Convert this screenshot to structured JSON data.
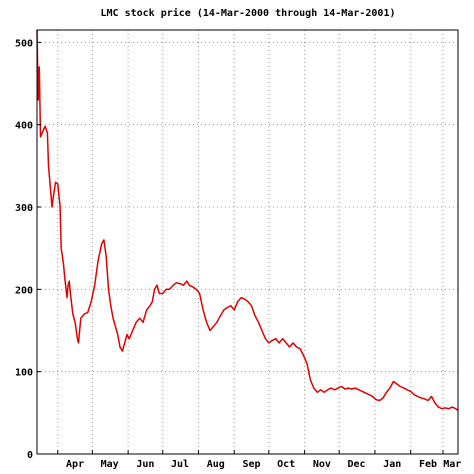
{
  "chart_data": {
    "type": "line",
    "title": "LMC stock price (14-Mar-2000 through 14-Mar-2001)",
    "xlabel": "",
    "ylabel": "",
    "x_axis": {
      "type": "date",
      "range": [
        "2000-03-14",
        "2001-03-14"
      ],
      "tick_labels": [
        {
          "label": "Apr",
          "date": "2000-04-16"
        },
        {
          "label": "May",
          "date": "2000-05-16"
        },
        {
          "label": "Jun",
          "date": "2000-06-16"
        },
        {
          "label": "Jul",
          "date": "2000-07-16"
        },
        {
          "label": "Aug",
          "date": "2000-08-16"
        },
        {
          "label": "Sep",
          "date": "2000-09-16"
        },
        {
          "label": "Oct",
          "date": "2000-10-16"
        },
        {
          "label": "Nov",
          "date": "2000-11-16"
        },
        {
          "label": "Dec",
          "date": "2000-12-16"
        },
        {
          "label": "Jan",
          "date": "2001-01-16"
        },
        {
          "label": "Feb",
          "date": "2001-02-16"
        },
        {
          "label": "Mar",
          "date": "2001-03-09"
        }
      ],
      "gridlines": [
        "2000-04-01",
        "2000-05-01",
        "2000-06-01",
        "2000-07-01",
        "2000-08-01",
        "2000-09-01",
        "2000-10-01",
        "2000-11-01",
        "2000-12-01",
        "2001-01-01",
        "2001-02-01",
        "2001-03-01"
      ]
    },
    "y_axis": {
      "range": [
        0,
        515
      ],
      "ticks": [
        0,
        100,
        200,
        300,
        400,
        500
      ]
    },
    "grid": true,
    "color": "#e00000",
    "series": [
      {
        "name": "",
        "points": [
          [
            "2000-03-14",
            515
          ],
          [
            "2000-03-15",
            430
          ],
          [
            "2000-03-16",
            470
          ],
          [
            "2000-03-17",
            385
          ],
          [
            "2000-03-20",
            395
          ],
          [
            "2000-03-21",
            398
          ],
          [
            "2000-03-23",
            390
          ],
          [
            "2000-03-24",
            350
          ],
          [
            "2000-03-27",
            300
          ],
          [
            "2000-03-28",
            310
          ],
          [
            "2000-03-30",
            330
          ],
          [
            "2000-04-01",
            328
          ],
          [
            "2000-04-03",
            300
          ],
          [
            "2000-04-04",
            250
          ],
          [
            "2000-04-05",
            240
          ],
          [
            "2000-04-06",
            230
          ],
          [
            "2000-04-07",
            215
          ],
          [
            "2000-04-09",
            190
          ],
          [
            "2000-04-10",
            205
          ],
          [
            "2000-04-11",
            210
          ],
          [
            "2000-04-12",
            195
          ],
          [
            "2000-04-14",
            170
          ],
          [
            "2000-04-16",
            160
          ],
          [
            "2000-04-18",
            140
          ],
          [
            "2000-04-19",
            135
          ],
          [
            "2000-04-21",
            165
          ],
          [
            "2000-04-24",
            170
          ],
          [
            "2000-04-27",
            172
          ],
          [
            "2000-04-30",
            185
          ],
          [
            "2000-05-03",
            205
          ],
          [
            "2000-05-06",
            235
          ],
          [
            "2000-05-09",
            255
          ],
          [
            "2000-05-11",
            260
          ],
          [
            "2000-05-13",
            240
          ],
          [
            "2000-05-15",
            200
          ],
          [
            "2000-05-17",
            180
          ],
          [
            "2000-05-19",
            165
          ],
          [
            "2000-05-21",
            155
          ],
          [
            "2000-05-23",
            145
          ],
          [
            "2000-05-25",
            130
          ],
          [
            "2000-05-27",
            125
          ],
          [
            "2000-05-29",
            135
          ],
          [
            "2000-05-31",
            145
          ],
          [
            "2000-06-02",
            140
          ],
          [
            "2000-06-05",
            150
          ],
          [
            "2000-06-08",
            160
          ],
          [
            "2000-06-11",
            165
          ],
          [
            "2000-06-14",
            160
          ],
          [
            "2000-06-17",
            175
          ],
          [
            "2000-06-20",
            180
          ],
          [
            "2000-06-22",
            185
          ],
          [
            "2000-06-24",
            200
          ],
          [
            "2000-06-26",
            205
          ],
          [
            "2000-06-28",
            195
          ],
          [
            "2000-07-01",
            195
          ],
          [
            "2000-07-04",
            200
          ],
          [
            "2000-07-07",
            200
          ],
          [
            "2000-07-10",
            205
          ],
          [
            "2000-07-13",
            208
          ],
          [
            "2000-07-16",
            207
          ],
          [
            "2000-07-19",
            205
          ],
          [
            "2000-07-22",
            210
          ],
          [
            "2000-07-24",
            205
          ],
          [
            "2000-07-27",
            203
          ],
          [
            "2000-07-30",
            200
          ],
          [
            "2000-08-02",
            195
          ],
          [
            "2000-08-05",
            175
          ],
          [
            "2000-08-08",
            160
          ],
          [
            "2000-08-11",
            150
          ],
          [
            "2000-08-14",
            155
          ],
          [
            "2000-08-17",
            160
          ],
          [
            "2000-08-20",
            168
          ],
          [
            "2000-08-23",
            175
          ],
          [
            "2000-08-26",
            178
          ],
          [
            "2000-08-29",
            180
          ],
          [
            "2000-09-01",
            175
          ],
          [
            "2000-09-04",
            185
          ],
          [
            "2000-09-07",
            190
          ],
          [
            "2000-09-10",
            188
          ],
          [
            "2000-09-13",
            185
          ],
          [
            "2000-09-16",
            180
          ],
          [
            "2000-09-19",
            168
          ],
          [
            "2000-09-22",
            160
          ],
          [
            "2000-09-25",
            150
          ],
          [
            "2000-09-28",
            140
          ],
          [
            "2000-10-01",
            135
          ],
          [
            "2000-10-04",
            138
          ],
          [
            "2000-10-07",
            140
          ],
          [
            "2000-10-10",
            135
          ],
          [
            "2000-10-13",
            140
          ],
          [
            "2000-10-16",
            135
          ],
          [
            "2000-10-19",
            130
          ],
          [
            "2000-10-22",
            135
          ],
          [
            "2000-10-25",
            130
          ],
          [
            "2000-10-28",
            128
          ],
          [
            "2000-10-31",
            120
          ],
          [
            "2000-11-03",
            110
          ],
          [
            "2000-11-06",
            90
          ],
          [
            "2000-11-09",
            80
          ],
          [
            "2000-11-12",
            75
          ],
          [
            "2000-11-15",
            78
          ],
          [
            "2000-11-18",
            75
          ],
          [
            "2000-11-21",
            78
          ],
          [
            "2000-11-24",
            80
          ],
          [
            "2000-11-27",
            78
          ],
          [
            "2000-11-30",
            80
          ],
          [
            "2000-12-03",
            82
          ],
          [
            "2000-12-06",
            79
          ],
          [
            "2000-12-09",
            80
          ],
          [
            "2000-12-12",
            79
          ],
          [
            "2000-12-15",
            80
          ],
          [
            "2000-12-18",
            78
          ],
          [
            "2000-12-21",
            76
          ],
          [
            "2000-12-24",
            74
          ],
          [
            "2000-12-27",
            72
          ],
          [
            "2000-12-30",
            70
          ],
          [
            "2001-01-02",
            66
          ],
          [
            "2001-01-05",
            65
          ],
          [
            "2001-01-08",
            68
          ],
          [
            "2001-01-11",
            75
          ],
          [
            "2001-01-14",
            80
          ],
          [
            "2001-01-17",
            88
          ],
          [
            "2001-01-20",
            85
          ],
          [
            "2001-01-23",
            82
          ],
          [
            "2001-01-26",
            80
          ],
          [
            "2001-01-29",
            78
          ],
          [
            "2001-02-01",
            76
          ],
          [
            "2001-02-04",
            72
          ],
          [
            "2001-02-07",
            70
          ],
          [
            "2001-02-10",
            68
          ],
          [
            "2001-02-13",
            67
          ],
          [
            "2001-02-16",
            65
          ],
          [
            "2001-02-19",
            70
          ],
          [
            "2001-02-22",
            62
          ],
          [
            "2001-02-25",
            57
          ],
          [
            "2001-02-28",
            55
          ],
          [
            "2001-03-03",
            56
          ],
          [
            "2001-03-06",
            55
          ],
          [
            "2001-03-09",
            57
          ],
          [
            "2001-03-12",
            55
          ],
          [
            "2001-03-14",
            53
          ]
        ]
      }
    ]
  }
}
